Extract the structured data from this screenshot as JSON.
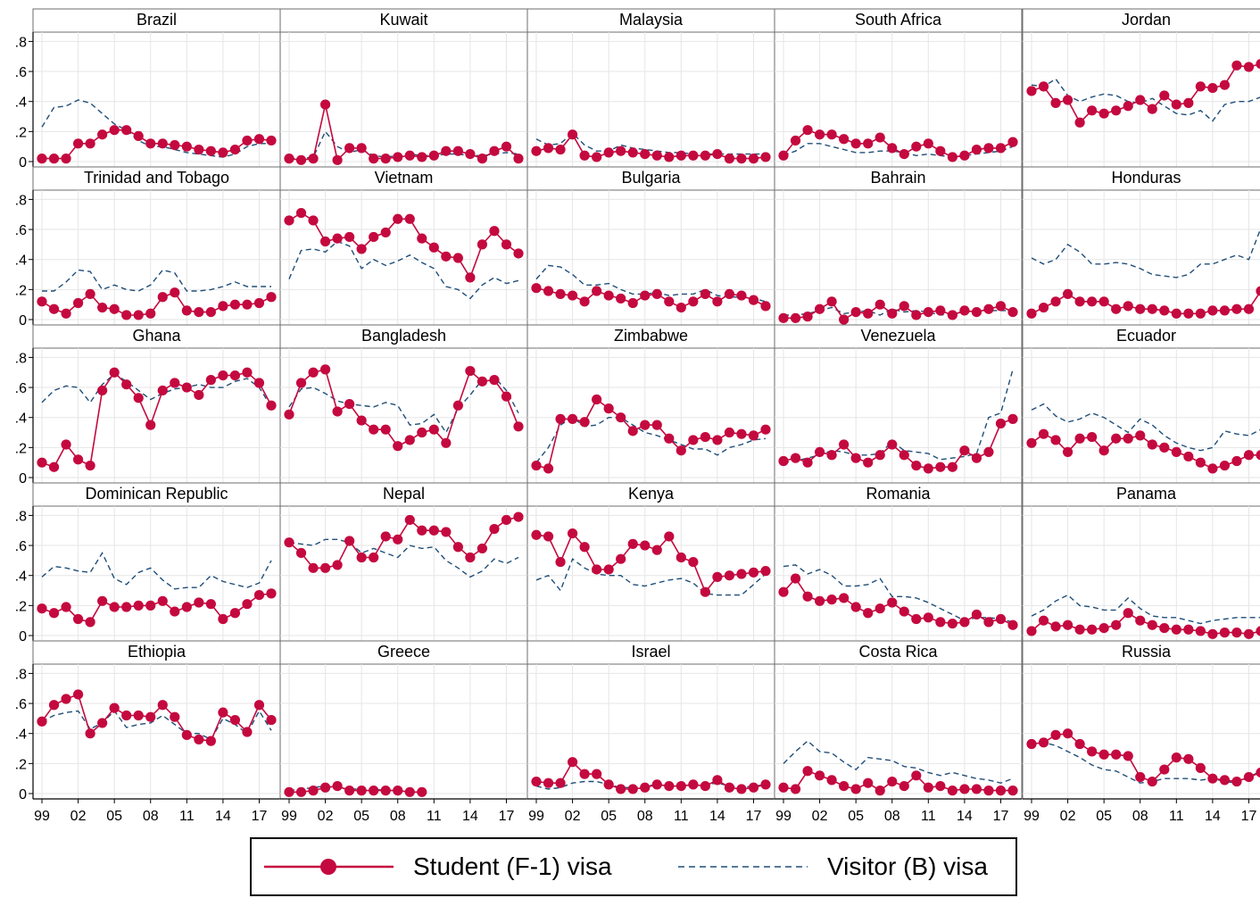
{
  "chart_data": {
    "type": "line",
    "layout": "small-multiples",
    "x": [
      "99",
      "00",
      "01",
      "02",
      "03",
      "04",
      "05",
      "06",
      "07",
      "08",
      "09",
      "10",
      "11",
      "12",
      "13",
      "14",
      "15",
      "16",
      "17",
      "18"
    ],
    "xticks": [
      "99",
      "02",
      "05",
      "08",
      "11",
      "14",
      "17"
    ],
    "yticks": [
      ".8",
      ".6",
      ".4",
      ".2",
      "0"
    ],
    "ylim": [
      0,
      0.85
    ],
    "grid": true,
    "legend_position": "bottom",
    "colors": {
      "student": "#c4093f",
      "visitor": "#1f4e79"
    },
    "series_names": [
      "Student (F-1) visa",
      "Visitor (B) visa"
    ],
    "panels": [
      {
        "title": "Brazil",
        "student": [
          0.02,
          0.02,
          0.02,
          0.12,
          0.12,
          0.18,
          0.21,
          0.21,
          0.17,
          0.12,
          0.12,
          0.11,
          0.1,
          0.08,
          0.07,
          0.06,
          0.08,
          0.14,
          0.15,
          0.14
        ],
        "visitor": [
          0.23,
          0.36,
          0.37,
          0.41,
          0.39,
          0.32,
          0.25,
          0.21,
          0.14,
          0.1,
          0.1,
          0.08,
          0.06,
          0.05,
          0.04,
          0.03,
          0.05,
          0.1,
          0.12,
          0.12
        ]
      },
      {
        "title": "Kuwait",
        "student": [
          0.02,
          0.01,
          0.02,
          0.38,
          0.01,
          0.09,
          0.09,
          0.02,
          0.02,
          0.03,
          0.04,
          0.03,
          0.04,
          0.07,
          0.07,
          0.05,
          0.02,
          0.07,
          0.1,
          0.02
        ],
        "visitor": [
          0.02,
          0.02,
          0.03,
          0.2,
          0.1,
          0.06,
          0.08,
          0.04,
          0.03,
          0.04,
          0.05,
          0.04,
          0.04,
          0.05,
          0.05,
          0.04,
          0.04,
          0.05,
          0.06,
          0.05
        ]
      },
      {
        "title": "Malaysia",
        "student": [
          0.07,
          0.09,
          0.08,
          0.18,
          0.04,
          0.03,
          0.06,
          0.07,
          0.06,
          0.05,
          0.04,
          0.03,
          0.04,
          0.04,
          0.04,
          0.05,
          0.02,
          0.02,
          0.02,
          0.03
        ],
        "visitor": [
          0.15,
          0.11,
          0.12,
          0.19,
          0.11,
          0.07,
          0.07,
          0.11,
          0.09,
          0.08,
          0.07,
          0.06,
          0.06,
          0.05,
          0.05,
          0.05,
          0.05,
          0.05,
          0.05,
          0.05
        ]
      },
      {
        "title": "South Africa",
        "student": [
          0.04,
          0.14,
          0.21,
          0.18,
          0.18,
          0.15,
          0.12,
          0.12,
          0.16,
          0.09,
          0.05,
          0.1,
          0.12,
          0.07,
          0.03,
          0.04,
          0.08,
          0.09,
          0.09,
          0.13
        ],
        "visitor": [
          0.04,
          0.07,
          0.12,
          0.12,
          0.1,
          0.08,
          0.06,
          0.06,
          0.07,
          0.07,
          0.06,
          0.04,
          0.05,
          0.04,
          0.03,
          0.04,
          0.05,
          0.06,
          0.07,
          0.1
        ]
      },
      {
        "title": "Jordan",
        "student": [
          0.47,
          0.5,
          0.39,
          0.41,
          0.26,
          0.34,
          0.32,
          0.34,
          0.37,
          0.41,
          0.35,
          0.44,
          0.38,
          0.39,
          0.5,
          0.49,
          0.51,
          0.64,
          0.63,
          0.65
        ],
        "visitor": [
          0.51,
          0.5,
          0.55,
          0.44,
          0.4,
          0.43,
          0.45,
          0.44,
          0.4,
          0.39,
          0.42,
          0.37,
          0.32,
          0.31,
          0.34,
          0.27,
          0.38,
          0.4,
          0.4,
          0.43
        ]
      },
      {
        "title": "Trinidad and Tobago",
        "student": [
          0.12,
          0.07,
          0.04,
          0.11,
          0.17,
          0.08,
          0.07,
          0.03,
          0.03,
          0.04,
          0.15,
          0.18,
          0.06,
          0.05,
          0.05,
          0.09,
          0.1,
          0.1,
          0.11,
          0.15
        ],
        "visitor": [
          0.19,
          0.19,
          0.25,
          0.33,
          0.32,
          0.2,
          0.23,
          0.2,
          0.19,
          0.23,
          0.33,
          0.31,
          0.19,
          0.19,
          0.2,
          0.22,
          0.25,
          0.22,
          0.22,
          0.22
        ]
      },
      {
        "title": "Vietnam",
        "student": [
          0.66,
          0.71,
          0.66,
          0.52,
          0.54,
          0.55,
          0.47,
          0.55,
          0.58,
          0.67,
          0.67,
          0.54,
          0.48,
          0.42,
          0.41,
          0.28,
          0.5,
          0.59,
          0.5,
          0.44
        ],
        "visitor": [
          0.27,
          0.46,
          0.47,
          0.45,
          0.52,
          0.49,
          0.34,
          0.4,
          0.36,
          0.39,
          0.43,
          0.38,
          0.34,
          0.22,
          0.2,
          0.14,
          0.23,
          0.28,
          0.24,
          0.26
        ]
      },
      {
        "title": "Bulgaria",
        "student": [
          0.21,
          0.19,
          0.17,
          0.16,
          0.12,
          0.19,
          0.16,
          0.14,
          0.11,
          0.16,
          0.17,
          0.12,
          0.08,
          0.12,
          0.17,
          0.12,
          0.17,
          0.16,
          0.13,
          0.09
        ],
        "visitor": [
          0.27,
          0.36,
          0.35,
          0.3,
          0.23,
          0.23,
          0.24,
          0.2,
          0.17,
          0.17,
          0.18,
          0.16,
          0.17,
          0.17,
          0.2,
          0.16,
          0.15,
          0.15,
          0.14,
          0.12
        ]
      },
      {
        "title": "Bahrain",
        "student": [
          0.01,
          0.01,
          0.02,
          0.07,
          0.12,
          0.0,
          0.05,
          0.04,
          0.1,
          0.04,
          0.09,
          0.03,
          0.05,
          0.06,
          0.03,
          0.06,
          0.05,
          0.07,
          0.09,
          0.05
        ],
        "visitor": [
          0.03,
          0.03,
          0.04,
          0.06,
          0.08,
          0.04,
          0.05,
          0.06,
          0.03,
          0.07,
          0.05,
          0.06,
          0.05,
          0.03,
          0.04,
          0.05,
          0.06,
          0.06,
          0.06,
          0.06
        ]
      },
      {
        "title": "Honduras",
        "student": [
          0.04,
          0.08,
          0.12,
          0.17,
          0.12,
          0.12,
          0.12,
          0.07,
          0.09,
          0.07,
          0.07,
          0.06,
          0.04,
          0.04,
          0.04,
          0.06,
          0.06,
          0.07,
          0.07,
          0.19
        ],
        "visitor": [
          0.41,
          0.37,
          0.4,
          0.5,
          0.45,
          0.37,
          0.37,
          0.38,
          0.37,
          0.34,
          0.3,
          0.29,
          0.28,
          0.3,
          0.37,
          0.37,
          0.4,
          0.43,
          0.4,
          0.61
        ]
      },
      {
        "title": "Ghana",
        "student": [
          0.1,
          0.07,
          0.22,
          0.12,
          0.08,
          0.58,
          0.7,
          0.62,
          0.53,
          0.35,
          0.58,
          0.63,
          0.6,
          0.55,
          0.65,
          0.68,
          0.68,
          0.7,
          0.63,
          0.48
        ],
        "visitor": [
          0.5,
          0.58,
          0.61,
          0.6,
          0.5,
          0.62,
          0.69,
          0.64,
          0.58,
          0.52,
          0.56,
          0.59,
          0.6,
          0.62,
          0.6,
          0.6,
          0.64,
          0.66,
          0.6,
          0.47
        ]
      },
      {
        "title": "Bangladesh",
        "student": [
          0.42,
          0.63,
          0.7,
          0.72,
          0.44,
          0.49,
          0.38,
          0.32,
          0.32,
          0.21,
          0.25,
          0.3,
          0.32,
          0.23,
          0.48,
          0.71,
          0.64,
          0.65,
          0.54,
          0.34
        ],
        "visitor": [
          0.47,
          0.59,
          0.6,
          0.56,
          0.51,
          0.49,
          0.48,
          0.47,
          0.5,
          0.48,
          0.35,
          0.36,
          0.42,
          0.3,
          0.46,
          0.55,
          0.65,
          0.67,
          0.58,
          0.43
        ]
      },
      {
        "title": "Zimbabwe",
        "student": [
          0.08,
          0.06,
          0.39,
          0.39,
          0.37,
          0.52,
          0.46,
          0.4,
          0.31,
          0.35,
          0.35,
          0.26,
          0.18,
          0.25,
          0.27,
          0.25,
          0.3,
          0.29,
          0.28,
          0.32
        ],
        "visitor": [
          0.1,
          0.2,
          0.35,
          0.4,
          0.34,
          0.35,
          0.4,
          0.4,
          0.35,
          0.3,
          0.28,
          0.25,
          0.22,
          0.19,
          0.19,
          0.15,
          0.2,
          0.22,
          0.25,
          0.26
        ]
      },
      {
        "title": "Venezuela",
        "student": [
          0.11,
          0.13,
          0.1,
          0.17,
          0.15,
          0.22,
          0.13,
          0.1,
          0.15,
          0.22,
          0.15,
          0.08,
          0.06,
          0.07,
          0.07,
          0.18,
          0.13,
          0.17,
          0.36,
          0.39
        ],
        "visitor": [
          0.1,
          0.11,
          0.13,
          0.15,
          0.18,
          0.17,
          0.15,
          0.15,
          0.16,
          0.24,
          0.18,
          0.17,
          0.16,
          0.12,
          0.13,
          0.14,
          0.16,
          0.4,
          0.43,
          0.72
        ]
      },
      {
        "title": "Ecuador",
        "student": [
          0.23,
          0.29,
          0.25,
          0.17,
          0.26,
          0.27,
          0.18,
          0.26,
          0.26,
          0.28,
          0.22,
          0.2,
          0.17,
          0.14,
          0.1,
          0.06,
          0.08,
          0.11,
          0.15,
          0.15
        ],
        "visitor": [
          0.45,
          0.49,
          0.41,
          0.37,
          0.39,
          0.43,
          0.4,
          0.35,
          0.3,
          0.39,
          0.35,
          0.28,
          0.23,
          0.2,
          0.18,
          0.2,
          0.31,
          0.29,
          0.28,
          0.32
        ]
      },
      {
        "title": "Dominican Republic",
        "student": [
          0.18,
          0.15,
          0.19,
          0.11,
          0.09,
          0.23,
          0.19,
          0.19,
          0.2,
          0.2,
          0.23,
          0.16,
          0.19,
          0.22,
          0.21,
          0.11,
          0.15,
          0.21,
          0.27,
          0.28
        ],
        "visitor": [
          0.39,
          0.46,
          0.45,
          0.43,
          0.42,
          0.55,
          0.38,
          0.34,
          0.42,
          0.45,
          0.37,
          0.31,
          0.32,
          0.32,
          0.4,
          0.36,
          0.34,
          0.32,
          0.35,
          0.5
        ]
      },
      {
        "title": "Nepal",
        "student": [
          0.62,
          0.55,
          0.45,
          0.45,
          0.47,
          0.63,
          0.52,
          0.52,
          0.66,
          0.64,
          0.77,
          0.7,
          0.7,
          0.69,
          0.59,
          0.52,
          0.58,
          0.71,
          0.77,
          0.79
        ],
        "visitor": [
          0.62,
          0.61,
          0.6,
          0.64,
          0.64,
          0.62,
          0.55,
          0.58,
          0.55,
          0.52,
          0.6,
          0.58,
          0.59,
          0.5,
          0.45,
          0.39,
          0.43,
          0.51,
          0.48,
          0.52
        ]
      },
      {
        "title": "Kenya",
        "student": [
          0.67,
          0.66,
          0.49,
          0.68,
          0.59,
          0.44,
          0.44,
          0.51,
          0.61,
          0.6,
          0.57,
          0.66,
          0.52,
          0.49,
          0.29,
          0.39,
          0.4,
          0.41,
          0.42,
          0.43
        ],
        "visitor": [
          0.37,
          0.4,
          0.3,
          0.51,
          0.45,
          0.41,
          0.4,
          0.4,
          0.34,
          0.33,
          0.35,
          0.37,
          0.38,
          0.35,
          0.28,
          0.27,
          0.27,
          0.27,
          0.34,
          0.41
        ]
      },
      {
        "title": "Romania",
        "student": [
          0.29,
          0.38,
          0.26,
          0.23,
          0.24,
          0.25,
          0.19,
          0.15,
          0.18,
          0.22,
          0.16,
          0.11,
          0.12,
          0.09,
          0.08,
          0.09,
          0.14,
          0.09,
          0.11,
          0.07
        ],
        "visitor": [
          0.46,
          0.47,
          0.41,
          0.44,
          0.4,
          0.33,
          0.33,
          0.34,
          0.38,
          0.26,
          0.26,
          0.25,
          0.22,
          0.18,
          0.14,
          0.1,
          0.12,
          0.12,
          0.11,
          0.09
        ]
      },
      {
        "title": "Panama",
        "student": [
          0.03,
          0.1,
          0.06,
          0.07,
          0.04,
          0.04,
          0.05,
          0.07,
          0.15,
          0.1,
          0.07,
          0.05,
          0.04,
          0.04,
          0.03,
          0.01,
          0.02,
          0.02,
          0.01,
          0.03
        ],
        "visitor": [
          0.13,
          0.17,
          0.23,
          0.27,
          0.2,
          0.19,
          0.17,
          0.17,
          0.25,
          0.18,
          0.13,
          0.12,
          0.12,
          0.1,
          0.08,
          0.1,
          0.11,
          0.12,
          0.12,
          0.12
        ]
      },
      {
        "title": "Ethiopia",
        "student": [
          0.48,
          0.59,
          0.63,
          0.66,
          0.4,
          0.47,
          0.57,
          0.52,
          0.52,
          0.51,
          0.59,
          0.51,
          0.39,
          0.36,
          0.35,
          0.54,
          0.49,
          0.41,
          0.59,
          0.49
        ],
        "visitor": [
          0.48,
          0.52,
          0.54,
          0.55,
          0.43,
          0.47,
          0.55,
          0.44,
          0.46,
          0.47,
          0.52,
          0.46,
          0.4,
          0.4,
          0.36,
          0.5,
          0.46,
          0.4,
          0.55,
          0.42
        ]
      },
      {
        "title": "Greece",
        "student": [
          0.01,
          0.01,
          0.02,
          0.04,
          0.05,
          0.02,
          0.02,
          0.02,
          0.02,
          0.02,
          0.01,
          0.01,
          null,
          null,
          null,
          null,
          null,
          null,
          null,
          null
        ],
        "visitor": [
          0.02,
          0.03,
          0.04,
          0.05,
          0.04,
          0.03,
          0.03,
          0.03,
          0.02,
          0.02,
          0.01,
          0.01,
          null,
          null,
          null,
          null,
          null,
          null,
          null,
          null
        ]
      },
      {
        "title": "Israel",
        "student": [
          0.08,
          0.07,
          0.07,
          0.21,
          0.13,
          0.13,
          0.06,
          0.03,
          0.03,
          0.04,
          0.06,
          0.05,
          0.05,
          0.06,
          0.05,
          0.09,
          0.04,
          0.03,
          0.04,
          0.06
        ],
        "visitor": [
          0.05,
          0.03,
          0.04,
          0.07,
          0.08,
          0.08,
          0.06,
          0.04,
          0.04,
          0.05,
          0.06,
          0.05,
          0.06,
          0.05,
          0.06,
          0.07,
          0.05,
          0.04,
          0.05,
          0.06
        ]
      },
      {
        "title": "Costa Rica",
        "student": [
          0.04,
          0.03,
          0.15,
          0.12,
          0.09,
          0.05,
          0.03,
          0.07,
          0.02,
          0.08,
          0.05,
          0.12,
          0.04,
          0.05,
          0.02,
          0.03,
          0.03,
          0.02,
          0.02,
          0.02
        ],
        "visitor": [
          0.2,
          0.28,
          0.35,
          0.28,
          0.27,
          0.21,
          0.16,
          0.24,
          0.23,
          0.22,
          0.18,
          0.17,
          0.14,
          0.12,
          0.14,
          0.12,
          0.1,
          0.09,
          0.07,
          0.1
        ]
      },
      {
        "title": "Russia",
        "student": [
          0.33,
          0.34,
          0.39,
          0.4,
          0.33,
          0.28,
          0.26,
          0.26,
          0.25,
          0.11,
          0.08,
          0.16,
          0.24,
          0.23,
          0.17,
          0.1,
          0.09,
          0.08,
          0.11,
          0.14
        ],
        "visitor": [
          0.33,
          0.34,
          0.32,
          0.28,
          0.24,
          0.19,
          0.16,
          0.15,
          0.11,
          0.07,
          0.08,
          0.1,
          0.1,
          0.1,
          0.09,
          0.1,
          0.08,
          0.07,
          0.11,
          0.15
        ]
      }
    ]
  }
}
